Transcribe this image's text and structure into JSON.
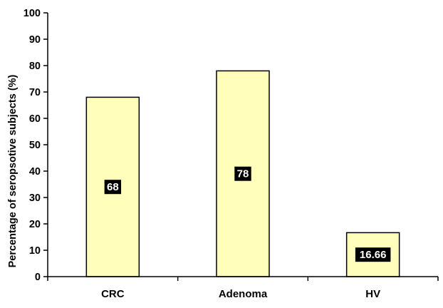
{
  "chart_data": {
    "type": "bar",
    "title": "",
    "xlabel": "",
    "ylabel": "Percentage of seropsotive subjects (%)",
    "categories": [
      "CRC",
      "Adenoma",
      "HV"
    ],
    "values": [
      68,
      78,
      16.66
    ],
    "data_labels": [
      "68",
      "78",
      "16.66"
    ],
    "ylim": [
      0,
      100
    ],
    "yticks": [
      "0",
      "10",
      "20",
      "30",
      "40",
      "50",
      "60",
      "70",
      "80",
      "90",
      "100"
    ],
    "grid": false,
    "legend": "none",
    "colors": {
      "bar_fill": "#FFFFBB",
      "bar_stroke": "#000000",
      "label_bg": "#000000",
      "label_text": "#FFFFFF",
      "axis": "#000000"
    }
  }
}
